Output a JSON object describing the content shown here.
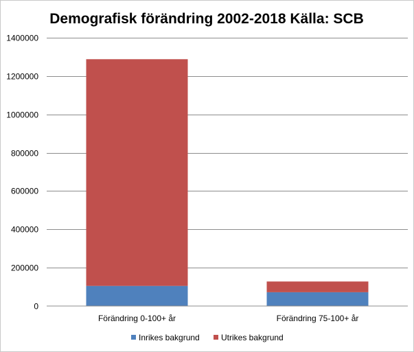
{
  "chart_data": {
    "type": "bar",
    "stacked": true,
    "title": "Demografisk förändring 2002-2018  Källa: SCB",
    "xlabel": "",
    "ylabel": "",
    "ylim": [
      0,
      1400000
    ],
    "yticks": [
      0,
      200000,
      400000,
      600000,
      800000,
      1000000,
      1200000,
      1400000
    ],
    "ytick_labels": [
      "0",
      "200000",
      "400000",
      "600000",
      "800000",
      "1000000",
      "1200000",
      "1400000"
    ],
    "categories": [
      "Förändring 0-100+ år",
      "Förändring 75-100+ år"
    ],
    "series": [
      {
        "name": "Inrikes bakgrund",
        "color": "#4f81bd",
        "values": [
          105000,
          72000
        ]
      },
      {
        "name": "Utrikes bakgrund",
        "color": "#c0504d",
        "values": [
          1183000,
          56000
        ]
      }
    ],
    "grid": true,
    "legend": "bottom"
  }
}
